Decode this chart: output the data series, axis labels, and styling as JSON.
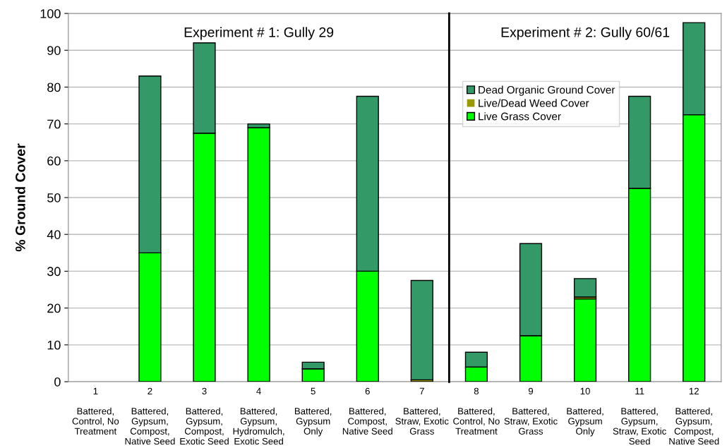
{
  "chart_data": [
    {
      "type": "bar",
      "stacked": true,
      "title": "Experiment # 1: Gully 29",
      "ylabel": "% Ground Cover",
      "categories": [
        "1\n\nBattered,\nControl, No\nTreatment",
        "2\n\nBattered,\nGypsum,\nCompost,\nNative Seed",
        "3\n\nBattered,\nGypsum,\nCompost,\nExotic Seed",
        "4\n\nBattered,\nGypsum,\nHydromulch,\nExotic Seed",
        "5\n\nBattered,\nGypsum\nOnly",
        "6\n\nBattered,\nCompost,\nNative Seed",
        "7\n\nBattered,\nStraw, Exotic\nGrass"
      ],
      "ylim": [
        0,
        100
      ],
      "yticks": [
        0,
        10,
        20,
        30,
        40,
        50,
        60,
        70,
        80,
        90,
        100
      ],
      "grid": "y",
      "series": [
        {
          "color": "#00ff00",
          "values": [
            0,
            35,
            67.5,
            69,
            3.5,
            30,
            0
          ]
        },
        {
          "color": "#999900",
          "values": [
            0,
            0,
            0,
            0,
            0,
            0,
            0.5
          ]
        },
        {
          "color": "#339966",
          "values": [
            0,
            48,
            24.5,
            1,
            1.8,
            47.5,
            27
          ]
        }
      ]
    },
    {
      "type": "bar",
      "stacked": true,
      "title": "Experiment # 2: Gully 60/61",
      "categories": [
        "8\n\nBattered,\nControl, No\nTreatment",
        "9\n\nBattered,\nStraw, Exotic\nGrass",
        "10\n\nBattered,\nGypsum\nOnly",
        "11\n\nBattered,\nGypsum,\nStraw, Exotic\nSeed",
        "12\n\nBattered,\nGypsum,\nCompost,\nNative Seed"
      ],
      "ylim": [
        0,
        100
      ],
      "yticks": [
        0,
        10,
        20,
        30,
        40,
        50,
        60,
        70,
        80,
        90,
        100
      ],
      "grid": "y",
      "tick_labels": "x",
      "legend": "top left",
      "series": [
        {
          "name": "Live Grass Cover",
          "color": "#00ff00",
          "values": [
            4,
            12.5,
            22.5,
            52.5,
            72.5
          ]
        },
        {
          "name": "Live/Dead Weed Cover",
          "color": "#999900",
          "values": [
            0,
            0,
            0.5,
            0,
            0
          ]
        },
        {
          "name": "Dead Organic Ground Cover",
          "color": "#339966",
          "values": [
            4,
            25,
            5,
            25,
            25
          ]
        }
      ]
    }
  ]
}
